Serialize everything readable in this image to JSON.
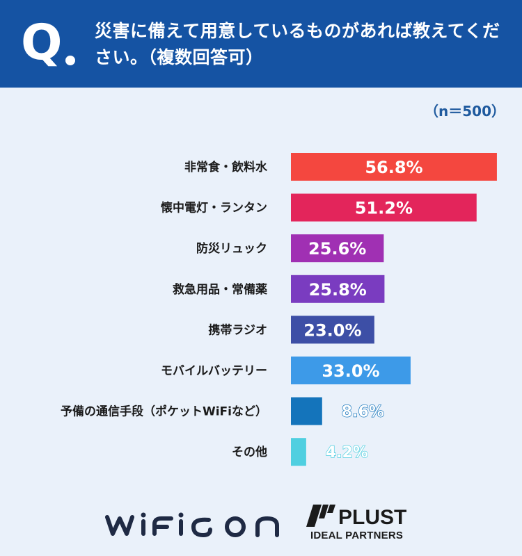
{
  "header": {
    "q_mark": "Q",
    "question": "災害に備えて用意しているものがあれば教えてください。（複数回答可）"
  },
  "sample_label": "（n＝500）",
  "chart_data": {
    "type": "bar",
    "orientation": "horizontal",
    "categories": [
      "非常食・飲料水",
      "懐中電灯・ランタン",
      "防災リュック",
      "救急用品・常備薬",
      "携帯ラジオ",
      "モバイルバッテリー",
      "予備の通信手段（ポケットWiFiなど）",
      "その他"
    ],
    "values": [
      56.8,
      51.2,
      25.6,
      25.8,
      23.0,
      33.0,
      8.6,
      4.2
    ],
    "value_labels": [
      "56.8%",
      "51.2%",
      "25.6%",
      "25.8%",
      "23.0%",
      "33.0%",
      "8.6%",
      "4.2%"
    ],
    "unit": "%",
    "xlim": [
      0,
      60
    ],
    "colors": [
      "#f4473f",
      "#e3255b",
      "#a030b3",
      "#7a3cc0",
      "#3d4fa6",
      "#3d9ae8",
      "#1474bb",
      "#4fcfe0"
    ],
    "grid": false,
    "legend": "none"
  },
  "logos": {
    "wifigo": "wifigo",
    "plust_name": "PLUST",
    "plust_sub": "IDEAL PARTNERS"
  }
}
